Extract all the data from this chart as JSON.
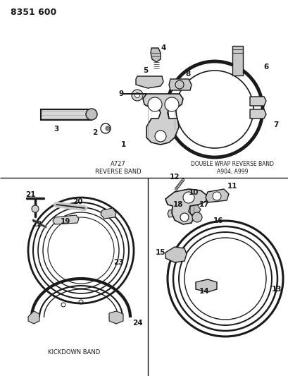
{
  "title": "8351 600",
  "bg_color": "#ffffff",
  "line_color": "#1a1a1a",
  "fig_width": 4.1,
  "fig_height": 5.33,
  "dpi": 100,
  "top_label": "A727\nREVERSE BAND",
  "right_top_label": "DOUBLE WRAP REVERSE BAND\nA904, A999",
  "bottom_left_label": "KICKDOWN BAND"
}
